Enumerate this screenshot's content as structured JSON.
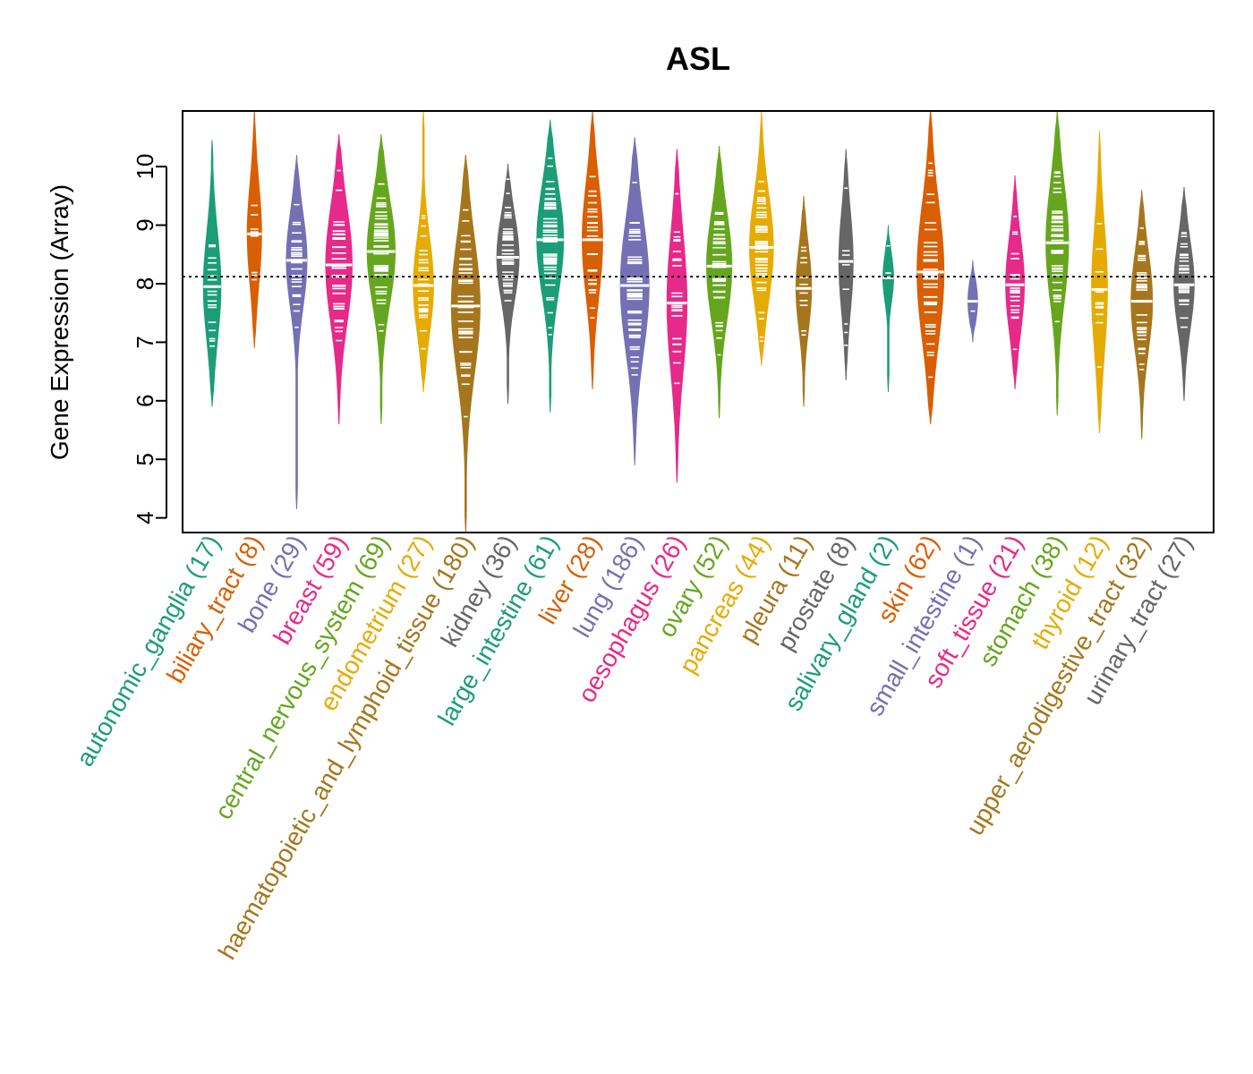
{
  "chart_data": {
    "type": "violin",
    "title": "ASL",
    "xlabel": "",
    "ylabel": "Gene Expression (Array)",
    "ylim": [
      3.75,
      10.95
    ],
    "yticks": [
      4,
      5,
      6,
      7,
      8,
      9,
      10
    ],
    "reference_line": 8.12,
    "reference_style": "dotted",
    "categories": [
      {
        "name": "autonomic_ganglia",
        "n": 17,
        "color": "#1b9e77",
        "min": 5.9,
        "max": 10.45,
        "median": 7.95
      },
      {
        "name": "biliary_tract",
        "n": 8,
        "color": "#d95f02",
        "min": 6.9,
        "max": 10.95,
        "median": 8.85
      },
      {
        "name": "bone",
        "n": 29,
        "color": "#7570b3",
        "min": 4.15,
        "max": 10.2,
        "median": 8.4
      },
      {
        "name": "breast",
        "n": 59,
        "color": "#e7298a",
        "min": 5.6,
        "max": 10.55,
        "median": 8.32
      },
      {
        "name": "central_nervous_system",
        "n": 69,
        "color": "#66a61e",
        "min": 5.6,
        "max": 10.55,
        "median": 8.55
      },
      {
        "name": "endometrium",
        "n": 27,
        "color": "#e6ab02",
        "min": 6.15,
        "max": 10.95,
        "median": 7.97
      },
      {
        "name": "haematopoietic_and_lymphoid_tissue",
        "n": 180,
        "color": "#a6761d",
        "min": 3.75,
        "max": 10.2,
        "median": 7.62
      },
      {
        "name": "kidney",
        "n": 36,
        "color": "#666666",
        "min": 5.95,
        "max": 10.05,
        "median": 8.45
      },
      {
        "name": "large_intestine",
        "n": 61,
        "color": "#1b9e77",
        "min": 5.8,
        "max": 10.8,
        "median": 8.75
      },
      {
        "name": "liver",
        "n": 28,
        "color": "#d95f02",
        "min": 6.2,
        "max": 10.95,
        "median": 8.75
      },
      {
        "name": "lung",
        "n": 186,
        "color": "#7570b3",
        "min": 4.9,
        "max": 10.5,
        "median": 7.97
      },
      {
        "name": "oesophagus",
        "n": 26,
        "color": "#e7298a",
        "min": 4.6,
        "max": 10.3,
        "median": 7.67
      },
      {
        "name": "ovary",
        "n": 52,
        "color": "#66a61e",
        "min": 5.7,
        "max": 10.35,
        "median": 8.3
      },
      {
        "name": "pancreas",
        "n": 44,
        "color": "#e6ab02",
        "min": 6.6,
        "max": 10.95,
        "median": 8.62
      },
      {
        "name": "pleura",
        "n": 11,
        "color": "#a6761d",
        "min": 5.9,
        "max": 9.5,
        "median": 7.92
      },
      {
        "name": "prostate",
        "n": 8,
        "color": "#666666",
        "min": 6.35,
        "max": 10.3,
        "median": 8.38
      },
      {
        "name": "salivary_gland",
        "n": 2,
        "color": "#1b9e77",
        "min": 6.15,
        "max": 9.0,
        "median": 8.1
      },
      {
        "name": "skin",
        "n": 62,
        "color": "#d95f02",
        "min": 5.6,
        "max": 11.0,
        "median": 8.2
      },
      {
        "name": "small_intestine",
        "n": 1,
        "color": "#7570b3",
        "min": 7.0,
        "max": 8.4,
        "median": 7.7
      },
      {
        "name": "soft_tissue",
        "n": 21,
        "color": "#e7298a",
        "min": 6.2,
        "max": 9.85,
        "median": 7.98
      },
      {
        "name": "stomach",
        "n": 38,
        "color": "#66a61e",
        "min": 5.75,
        "max": 10.95,
        "median": 8.7
      },
      {
        "name": "thyroid",
        "n": 12,
        "color": "#e6ab02",
        "min": 5.45,
        "max": 10.6,
        "median": 7.9
      },
      {
        "name": "upper_aerodigestive_tract",
        "n": 32,
        "color": "#a6761d",
        "min": 5.35,
        "max": 9.6,
        "median": 7.7
      },
      {
        "name": "urinary_tract",
        "n": 27,
        "color": "#666666",
        "min": 6.0,
        "max": 9.65,
        "median": 7.98
      }
    ]
  }
}
